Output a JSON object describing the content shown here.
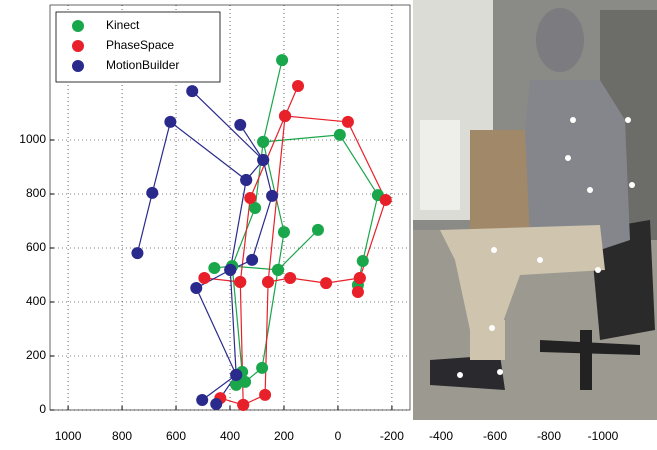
{
  "chart_data": [
    {
      "type": "line",
      "xlim": [
        1067,
        -267
      ],
      "ylim": [
        0,
        1500
      ],
      "xticks": [
        1000,
        800,
        600,
        400,
        200,
        0,
        -200
      ],
      "yticks": [
        0,
        200,
        400,
        600,
        800,
        1000
      ],
      "grid": true,
      "legend": "top-left",
      "series": [
        {
          "name": "Kinect",
          "color": "#1aa64a",
          "x": [
            207,
            277,
            -7,
            -148,
            -92,
            -74,
            null,
            277,
            307,
            392,
            458,
            null,
            277,
            200,
            222,
            74,
            null,
            222,
            392,
            355,
            377,
            null,
            222,
            281,
            344
          ],
          "y": [
            1296,
            993,
            1019,
            796,
            552,
            463,
            null,
            993,
            748,
            533,
            526,
            null,
            993,
            659,
            519,
            667,
            null,
            519,
            533,
            141,
            93,
            null,
            519,
            156,
            104
          ]
        },
        {
          "name": "PhaseSpace",
          "color": "#e8202a",
          "x": [
            148,
            196,
            -37,
            -177,
            -81,
            -74,
            null,
            196,
            325,
            362,
            495,
            null,
            196,
            259,
            177,
            44,
            -81,
            null,
            362,
            351,
            436,
            null,
            259,
            270,
            351
          ],
          "y": [
            1200,
            1089,
            1067,
            778,
            489,
            437,
            null,
            1089,
            785,
            474,
            489,
            null,
            1089,
            474,
            489,
            470,
            489,
            null,
            474,
            19,
            44,
            null,
            474,
            56,
            19
          ]
        },
        {
          "name": "MotionBuilder",
          "color": "#2a2a8c",
          "x": [
            540,
            277,
            340,
            621,
            688,
            743,
            null,
            362,
            277,
            244,
            318,
            399,
            null,
            340,
            399,
            525,
            377,
            503,
            null,
            399,
            377,
            451
          ],
          "y": [
            1181,
            926,
            852,
            1067,
            804,
            581,
            null,
            1056,
            926,
            793,
            556,
            519,
            null,
            852,
            519,
            452,
            130,
            37,
            null,
            519,
            130,
            22
          ]
        }
      ]
    },
    {
      "type": "image",
      "xlim": [
        -296,
        -1200
      ],
      "xticks": [
        -400,
        -600,
        -800,
        -1000
      ]
    }
  ]
}
